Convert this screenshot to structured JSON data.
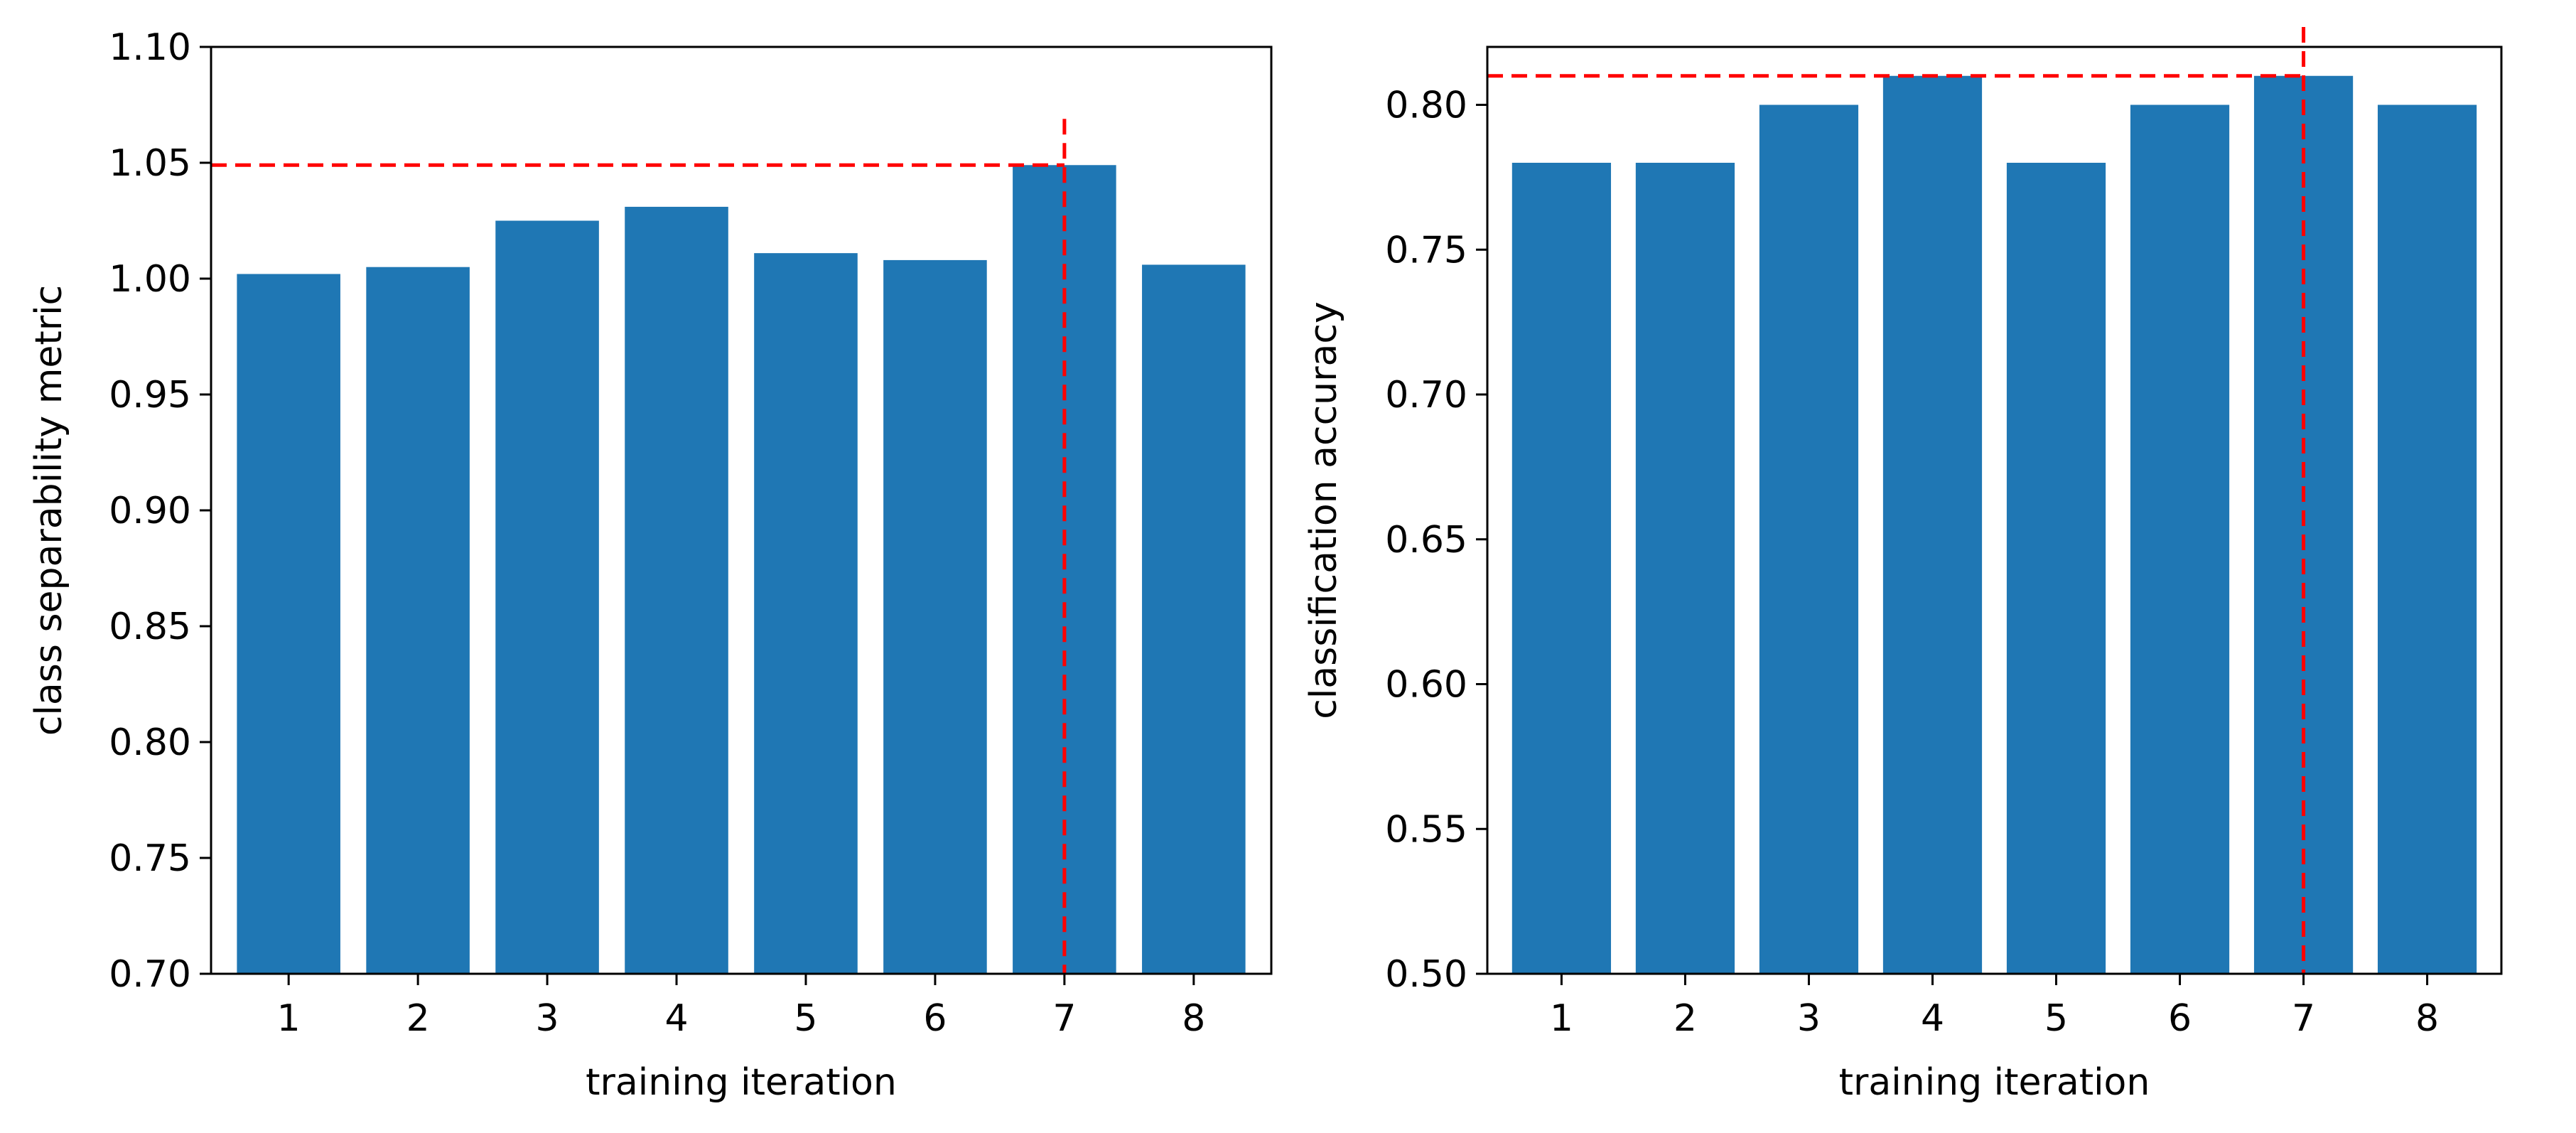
{
  "chart_data": [
    {
      "type": "bar",
      "title": "",
      "xlabel": "training iteration",
      "ylabel": "class separability metric",
      "categories": [
        "1",
        "2",
        "3",
        "4",
        "5",
        "6",
        "7",
        "8"
      ],
      "values": [
        1.002,
        1.005,
        1.025,
        1.031,
        1.011,
        1.008,
        1.049,
        1.006
      ],
      "ylim": [
        0.7,
        1.1
      ],
      "yticks": [
        "0.70",
        "0.75",
        "0.80",
        "0.85",
        "0.90",
        "0.95",
        "1.00",
        "1.05",
        "1.10"
      ],
      "grid": false,
      "bar_color": "#1f77b4",
      "reference_lines": {
        "hline": 1.049,
        "vline_category": "7",
        "color": "#ff0000",
        "style": "dashed"
      }
    },
    {
      "type": "bar",
      "title": "",
      "xlabel": "training iteration",
      "ylabel": "classification accuracy",
      "categories": [
        "1",
        "2",
        "3",
        "4",
        "5",
        "6",
        "7",
        "8"
      ],
      "values": [
        0.78,
        0.78,
        0.8,
        0.81,
        0.78,
        0.8,
        0.81,
        0.8
      ],
      "ylim": [
        0.5,
        0.82
      ],
      "yticks": [
        "0.50",
        "0.55",
        "0.60",
        "0.65",
        "0.70",
        "0.75",
        "0.80"
      ],
      "grid": false,
      "bar_color": "#1f77b4",
      "reference_lines": {
        "hline": 0.81,
        "vline_category": "7",
        "color": "#ff0000",
        "style": "dashed"
      }
    }
  ]
}
